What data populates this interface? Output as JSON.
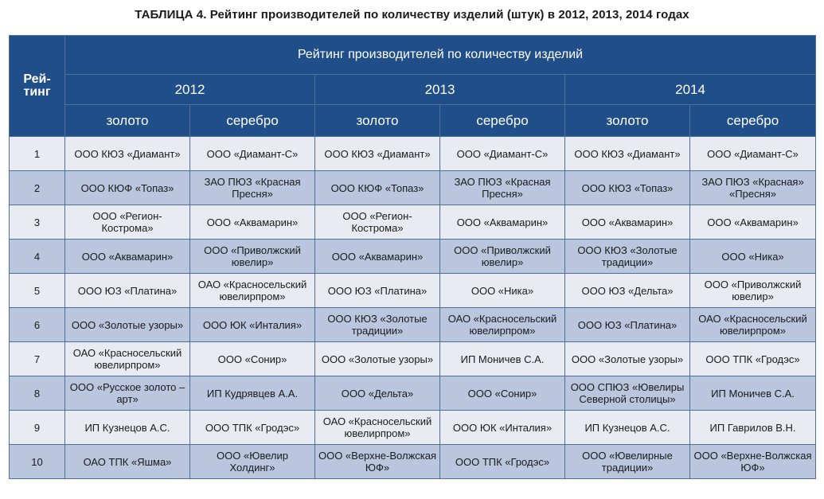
{
  "caption": "ТАБЛИЦА 4. Рейтинг производителей по количеству изделий (штук) в 2012, 2013, 2014 годах",
  "header": {
    "rank": "Рей-\nтинг",
    "group_title": "Рейтинг производителей по количеству изделий",
    "years": [
      "2012",
      "2013",
      "2014"
    ],
    "metals": [
      "золото",
      "серебро",
      "золото",
      "серебро",
      "золото",
      "серебро"
    ]
  },
  "rows": [
    {
      "rank": "1",
      "cells": [
        "ООО КЮЗ «Диамант»",
        "ООО «Диамант-С»",
        "ООО КЮЗ «Диамант»",
        "ООО «Диамант-С»",
        "ООО КЮЗ «Диамант»",
        "ООО «Диамант-С»"
      ]
    },
    {
      "rank": "2",
      "cells": [
        "ООО КЮФ «Топаз»",
        "ЗАО ПЮЗ «Красная Пресня»",
        "ООО КЮФ «Топаз»",
        "ЗАО ПЮЗ «Красная Пресня»",
        "ООО КЮЗ «Топаз»",
        "ЗАО ПЮЗ «Красная» «Пресня»"
      ]
    },
    {
      "rank": "3",
      "cells": [
        "ООО «Регион-Кострома»",
        "ООО «Аквамарин»",
        "ООО «Регион-Кострома»",
        "ООО «Аквамарин»",
        "ООО «Аквамарин»",
        "ООО «Аквамарин»"
      ]
    },
    {
      "rank": "4",
      "cells": [
        "ООО «Аквамарин»",
        "ООО «Приволжский ювелир»",
        "ООО «Аквамарин»",
        "ООО «Приволжский ювелир»",
        "ООО КЮЗ «Золотые традиции»",
        "ООО «Ника»"
      ]
    },
    {
      "rank": "5",
      "cells": [
        "ООО ЮЗ «Платина»",
        "ОАО «Красносельский ювелирпром»",
        "ООО ЮЗ «Платина»",
        "ООО «Ника»",
        "ООО ЮЗ «Дельта»",
        "ООО «Приволжский ювелир»"
      ]
    },
    {
      "rank": "6",
      "cells": [
        "ООО «Золотые узоры»",
        "ООО ЮК «Инталия»",
        "ООО КЮЗ «Золотые традиции»",
        "ОАО «Красносельский ювелирпром»",
        "ООО ЮЗ «Платина»",
        "ОАО «Красносельский ювелирпром»"
      ]
    },
    {
      "rank": "7",
      "cells": [
        "ОАО «Красносельский ювелирпром»",
        "ООО «Сонир»",
        "ООО «Золотые узоры»",
        "ИП Моничев С.А.",
        "ООО «Золотые узоры»",
        "ООО ТПК «Гродэс»"
      ]
    },
    {
      "rank": "8",
      "cells": [
        "ООО «Русское золото – арт»",
        "ИП Кудрявцев А.А.",
        "ООО «Дельта»",
        "ООО «Сонир»",
        "ООО СПЮЗ «Ювелиры Северной столицы»",
        "ИП Моничев С.А."
      ]
    },
    {
      "rank": "9",
      "cells": [
        "ИП Кузнецов А.С.",
        "ООО ТПК «Гродэс»",
        "ОАО «Красносельский ювелирпром»",
        "ООО ЮК «Инталия»",
        "ИП Кузнецов А.С.",
        "ИП Гаврилов В.Н."
      ]
    },
    {
      "rank": "10",
      "cells": [
        "ОАО ТПК «Яшма»",
        "ООО «Ювелир Холдинг»",
        "ООО «Верхне-Волжская ЮФ»",
        "ООО ТПК «Гродэс»",
        "ООО «Ювелирные традиции»",
        "ООО «Верхне-Волжская ЮФ»"
      ]
    }
  ]
}
